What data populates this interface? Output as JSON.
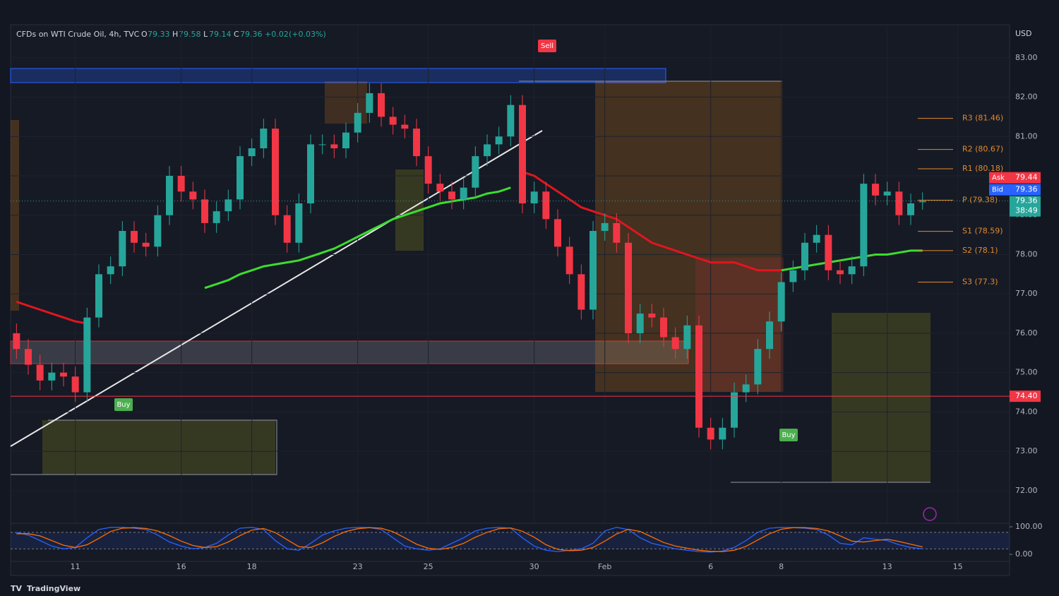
{
  "header": {
    "symbol": "CFDs on WTI Crude Oil, 4h, TVC",
    "ohlc": [
      {
        "prefix": "O",
        "value": 79.33
      },
      {
        "prefix": "H",
        "value": 79.58
      },
      {
        "prefix": "L",
        "value": 79.14
      },
      {
        "prefix": "C",
        "value": 79.36
      }
    ],
    "change": {
      "value": 0.02,
      "label": "+0.02"
    },
    "change_pct": {
      "value": 0.03,
      "label": "(+0.03%)"
    },
    "currency": "USD",
    "branding": "TradingView"
  },
  "chart_data": [
    {
      "type": "candlestick",
      "up_color": "#26a69a",
      "down_color": "#f23645",
      "open": [
        76.0,
        75.6,
        75.2,
        74.8,
        75.0,
        74.9,
        74.5,
        76.4,
        77.5,
        77.7,
        78.6,
        78.3,
        78.2,
        79.0,
        80.0,
        79.6,
        79.4,
        78.8,
        79.1,
        79.4,
        80.5,
        80.7,
        81.2,
        79.0,
        78.3,
        79.3,
        80.8,
        80.8,
        80.7,
        81.1,
        81.6,
        82.1,
        81.5,
        81.3,
        81.2,
        80.5,
        79.8,
        79.6,
        79.4,
        79.7,
        80.5,
        80.8,
        81.0,
        81.8,
        79.3,
        79.6,
        78.9,
        78.2,
        77.5,
        76.6,
        78.6,
        78.8,
        78.3,
        76.0,
        76.5,
        76.4,
        75.9,
        75.6,
        76.2,
        73.6,
        73.3,
        73.6,
        74.5,
        74.7,
        75.6,
        76.3,
        77.3,
        77.6,
        78.3,
        78.5,
        77.6,
        77.5,
        77.7,
        79.8,
        79.5,
        79.6,
        79.0,
        79.33
      ],
      "high": [
        76.25,
        75.85,
        75.45,
        75.25,
        75.25,
        75.15,
        76.65,
        77.75,
        77.95,
        78.85,
        78.85,
        78.55,
        79.25,
        80.25,
        80.25,
        79.85,
        79.65,
        79.35,
        79.65,
        80.75,
        80.95,
        81.45,
        81.45,
        79.25,
        79.55,
        81.05,
        81.05,
        81.05,
        81.35,
        81.85,
        82.35,
        82.35,
        81.75,
        81.55,
        81.45,
        80.75,
        80.05,
        79.85,
        79.95,
        80.75,
        81.05,
        81.25,
        82.05,
        82.05,
        79.85,
        79.85,
        79.15,
        78.45,
        77.75,
        78.85,
        79.05,
        79.05,
        78.55,
        76.75,
        76.75,
        76.65,
        76.15,
        76.45,
        76.45,
        73.85,
        73.85,
        74.75,
        74.95,
        75.85,
        76.55,
        77.55,
        77.85,
        78.55,
        78.75,
        78.75,
        77.85,
        77.95,
        80.05,
        80.05,
        79.85,
        79.85,
        79.55,
        79.58
      ],
      "low": [
        75.35,
        74.95,
        74.55,
        74.55,
        74.65,
        74.25,
        74.25,
        76.15,
        77.25,
        77.45,
        78.05,
        77.95,
        77.95,
        78.75,
        79.35,
        79.15,
        78.55,
        78.55,
        78.85,
        79.15,
        80.25,
        80.45,
        78.75,
        78.05,
        78.05,
        79.05,
        80.55,
        80.45,
        80.45,
        80.85,
        81.35,
        81.25,
        81.05,
        80.95,
        80.25,
        79.55,
        79.35,
        79.15,
        79.15,
        79.45,
        80.25,
        80.55,
        80.75,
        79.05,
        79.05,
        78.65,
        77.95,
        77.25,
        76.35,
        76.35,
        78.35,
        78.05,
        75.75,
        75.75,
        76.15,
        75.65,
        75.35,
        75.35,
        73.35,
        73.05,
        73.05,
        73.35,
        74.25,
        74.45,
        75.35,
        76.05,
        77.05,
        77.35,
        78.05,
        77.35,
        77.25,
        77.25,
        77.45,
        79.25,
        79.25,
        78.75,
        78.75,
        79.14
      ],
      "close": [
        75.6,
        75.2,
        74.8,
        75.0,
        74.9,
        74.5,
        76.4,
        77.5,
        77.7,
        78.6,
        78.3,
        78.2,
        79.0,
        80.0,
        79.6,
        79.4,
        78.8,
        79.1,
        79.4,
        80.5,
        80.7,
        81.2,
        79.0,
        78.3,
        79.3,
        80.8,
        80.8,
        80.7,
        81.1,
        81.6,
        82.1,
        81.5,
        81.3,
        81.2,
        80.5,
        79.8,
        79.6,
        79.4,
        79.7,
        80.5,
        80.8,
        81.0,
        81.8,
        79.3,
        79.6,
        78.9,
        78.2,
        77.5,
        76.6,
        78.6,
        78.8,
        78.3,
        76.0,
        76.5,
        76.4,
        75.9,
        75.6,
        76.2,
        73.6,
        73.3,
        73.6,
        74.5,
        74.7,
        75.6,
        76.3,
        77.3,
        77.6,
        78.3,
        78.5,
        77.6,
        77.5,
        77.7,
        79.8,
        79.5,
        79.6,
        79.0,
        79.3,
        79.36
      ],
      "lines": [
        {
          "color": "#e0161e",
          "values": [
            76.8,
            76.7,
            76.6,
            76.5,
            76.4,
            76.3,
            76.25,
            null,
            null,
            null,
            null,
            null,
            null,
            null,
            null,
            null,
            null,
            null,
            null,
            null,
            null,
            null,
            null,
            null,
            null,
            null,
            null,
            null,
            null,
            null,
            null,
            null,
            null,
            null,
            null,
            null,
            null,
            null,
            null,
            null,
            null,
            null,
            null,
            80.1,
            80.0,
            79.8,
            79.6,
            79.4,
            79.2,
            79.1,
            79.0,
            78.9,
            78.7,
            78.5,
            78.3,
            78.2,
            78.1,
            78.0,
            77.9,
            77.8,
            77.8,
            77.8,
            77.7,
            77.6,
            77.6,
            77.6,
            null,
            null,
            null,
            null,
            null,
            null,
            null,
            null,
            null,
            null,
            null,
            null
          ]
        },
        {
          "color": "#3ddc2f",
          "values": [
            null,
            null,
            null,
            null,
            null,
            null,
            null,
            null,
            null,
            null,
            null,
            null,
            null,
            null,
            null,
            null,
            77.15,
            77.25,
            77.35,
            77.5,
            77.6,
            77.7,
            77.75,
            77.8,
            77.85,
            77.95,
            78.05,
            78.15,
            78.3,
            78.45,
            78.6,
            78.75,
            78.9,
            79.0,
            79.1,
            79.2,
            79.3,
            79.35,
            79.4,
            79.45,
            79.55,
            79.6,
            79.7,
            null,
            null,
            null,
            null,
            null,
            null,
            null,
            null,
            null,
            null,
            null,
            null,
            null,
            null,
            null,
            null,
            null,
            null,
            null,
            null,
            null,
            null,
            77.6,
            77.65,
            77.7,
            77.75,
            77.8,
            77.85,
            77.9,
            77.95,
            78.0,
            78.0,
            78.05,
            78.1,
            78.1
          ]
        }
      ],
      "pivots": [
        {
          "value": 81.46,
          "label": "R3 (81.46)"
        },
        {
          "value": 80.67,
          "label": "R2 (80.67)"
        },
        {
          "value": 80.18,
          "label": "R1 (80.18)"
        },
        {
          "value": 79.38,
          "label": "P (79.38)"
        },
        {
          "value": 78.59,
          "label": "S1 (78.59)"
        },
        {
          "value": 78.1,
          "label": "S2 (78.1)"
        },
        {
          "value": 77.3,
          "label": "S3 (77.3)"
        }
      ],
      "level": {
        "value": 74.4,
        "label": "74.40"
      },
      "quote": {
        "ask": {
          "label": "Ask",
          "value": 79.44
        },
        "bid": {
          "label": "Bid",
          "value": 79.36
        },
        "last": {
          "value": 79.36,
          "countdown": "38:49"
        }
      },
      "signals": [
        {
          "label": "Buy"
        },
        {
          "label": "Sell"
        },
        {
          "label": "Buy"
        }
      ],
      "xlim": [
        -0.5,
        84.4
      ],
      "ylim": [
        71.19,
        83.84
      ],
      "yticks": [
        {
          "value": 72,
          "label": "72.00"
        },
        {
          "value": 73,
          "label": "73.00"
        },
        {
          "value": 74,
          "label": "74.00"
        },
        {
          "value": 75,
          "label": "75.00"
        },
        {
          "value": 76,
          "label": "76.00"
        },
        {
          "value": 77,
          "label": "77.00"
        },
        {
          "value": 78,
          "label": "78.00"
        },
        {
          "value": 79,
          "label": "79.00"
        },
        {
          "value": 80,
          "label": "80.00"
        },
        {
          "value": 81,
          "label": "81.00"
        },
        {
          "value": 82,
          "label": "82.00"
        },
        {
          "value": 83,
          "label": "83.00"
        }
      ],
      "xticks": [
        {
          "value": 5,
          "label": "11"
        },
        {
          "value": 14,
          "label": "16"
        },
        {
          "value": 20,
          "label": "18"
        },
        {
          "value": 29,
          "label": "23"
        },
        {
          "value": 35,
          "label": "25"
        },
        {
          "value": 44,
          "label": "30"
        },
        {
          "value": 50,
          "label": "Feb"
        },
        {
          "value": 59,
          "label": "6"
        },
        {
          "value": 65,
          "label": "8"
        },
        {
          "value": 74,
          "label": "13"
        },
        {
          "value": 80,
          "label": "15"
        }
      ]
    },
    {
      "type": "line",
      "xlim": [
        -0.5,
        84.4
      ],
      "ylim": [
        -25.6,
        110.3
      ],
      "yticks": [
        {
          "value": 100,
          "label": "100.00"
        },
        {
          "value": 0,
          "label": "0.00"
        }
      ],
      "bands": [
        80,
        20
      ],
      "series": [
        {
          "color": "#2962ff",
          "values": [
            80,
            70,
            50,
            30,
            20,
            25,
            60,
            90,
            98,
            98,
            95,
            90,
            70,
            45,
            30,
            20,
            25,
            40,
            70,
            95,
            98,
            90,
            50,
            20,
            15,
            40,
            70,
            85,
            95,
            98,
            97,
            90,
            60,
            30,
            20,
            15,
            20,
            40,
            60,
            85,
            95,
            98,
            95,
            60,
            30,
            15,
            10,
            15,
            20,
            40,
            85,
            98,
            90,
            60,
            40,
            30,
            20,
            15,
            10,
            8,
            12,
            25,
            50,
            80,
            95,
            98,
            97,
            95,
            90,
            70,
            40,
            35,
            60,
            55,
            50,
            35,
            25,
            20
          ]
        },
        {
          "color": "#ff6d00",
          "values": [
            75,
            75,
            67,
            50,
            33,
            25,
            35,
            58,
            83,
            95,
            97,
            94,
            85,
            68,
            48,
            32,
            25,
            28,
            45,
            68,
            88,
            94,
            79,
            53,
            28,
            25,
            42,
            65,
            83,
            93,
            97,
            95,
            82,
            60,
            37,
            22,
            18,
            25,
            40,
            62,
            80,
            93,
            96,
            84,
            62,
            35,
            18,
            13,
            15,
            25,
            48,
            74,
            91,
            83,
            63,
            43,
            30,
            22,
            15,
            11,
            10,
            15,
            29,
            52,
            75,
            91,
            97,
            97,
            94,
            85,
            67,
            48,
            45,
            50,
            55,
            47,
            37,
            27
          ]
        }
      ]
    }
  ]
}
